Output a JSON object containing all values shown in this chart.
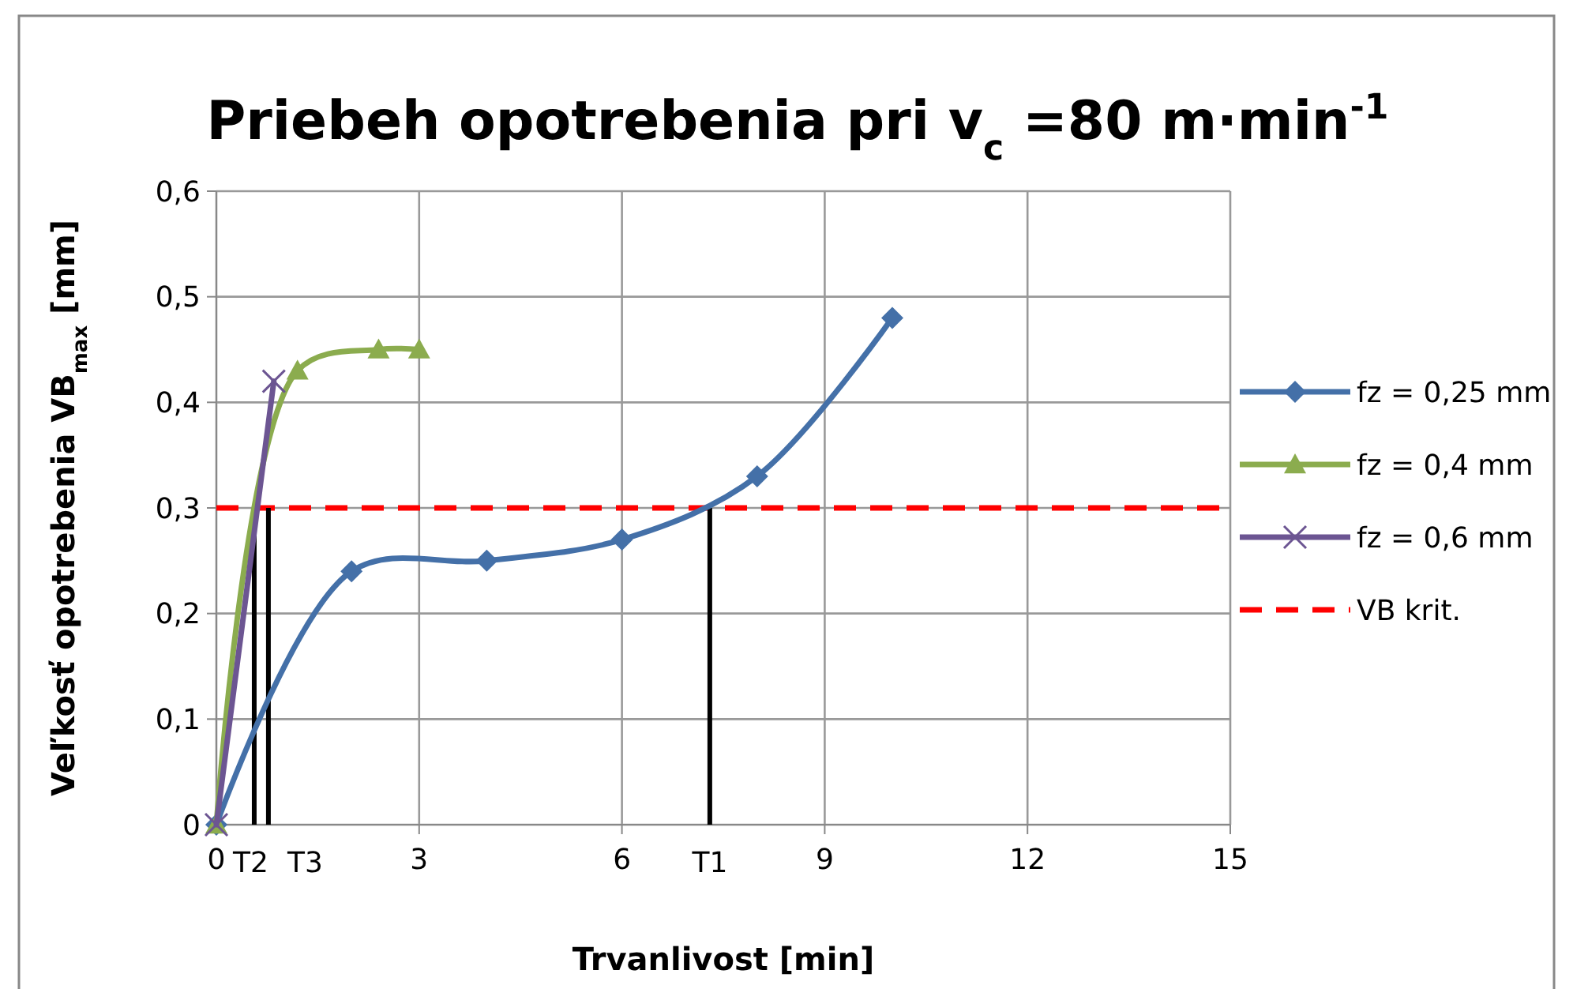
{
  "chart_data": {
    "type": "line",
    "title": "Priebeh opotrebenia pri v$_{c}$ =80 m·min$^{-1}$",
    "xlabel": "Trvanlivost [min]",
    "ylabel": "Veľkosť opotrebenia VB$_{max}$ [mm]",
    "xlim": [
      0,
      15
    ],
    "xticks": [
      0,
      3,
      6,
      9,
      12,
      15
    ],
    "ylim": [
      0,
      0.6
    ],
    "yticks": [
      0,
      {
        "value": 0.1,
        "label": "0,1"
      },
      {
        "value": 0.2,
        "label": "0,2"
      },
      {
        "value": 0.3,
        "label": "0,3"
      },
      {
        "value": 0.4,
        "label": "0,4"
      },
      {
        "value": 0.5,
        "label": "0,5"
      },
      {
        "value": 0.6,
        "label": "0,6"
      }
    ],
    "grid": true,
    "legend": "right",
    "series": [
      {
        "name": "fz = 0,25 mm",
        "color": "#4470a8",
        "marker": "diamond",
        "x": [
          0,
          2,
          4,
          6,
          8,
          10
        ],
        "values": [
          0,
          0.24,
          0.25,
          0.27,
          0.33,
          0.48
        ]
      },
      {
        "name": "fz = 0,4 mm",
        "color": "#8bac4e",
        "marker": "triangle",
        "x": [
          0,
          1.2,
          2.4,
          3
        ],
        "values": [
          0,
          0.43,
          0.45,
          0.45
        ]
      },
      {
        "name": "fz = 0,6 mm",
        "color": "#6c5592",
        "marker": "cross",
        "x": [
          0,
          0.85
        ],
        "values": [
          0,
          0.42
        ]
      }
    ],
    "ref_lines": [
      {
        "axis": "y",
        "value": 0.3,
        "label": "VB krit.",
        "color": "#ff0000",
        "line_style": "dashed"
      },
      {
        "axis": "x",
        "value": 0.56,
        "label": "T2",
        "color": "#000000"
      },
      {
        "axis": "x",
        "value": 0.77,
        "label": "T3",
        "color": "#000000"
      },
      {
        "axis": "x",
        "value": 7.3,
        "label": "T1",
        "color": "#000000"
      }
    ]
  }
}
